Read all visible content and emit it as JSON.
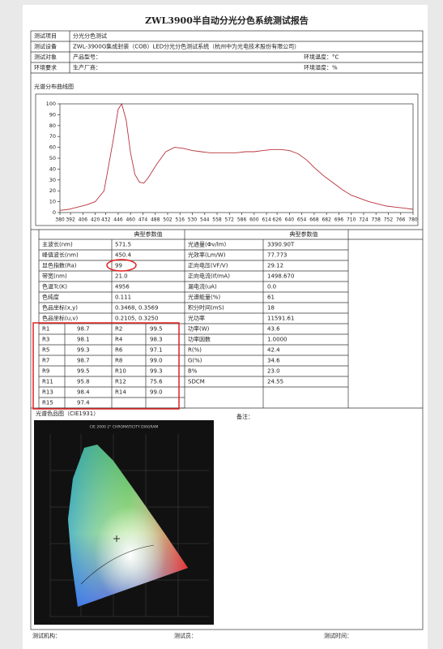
{
  "title": "ZWL3900半自动分光分色系统测试报告",
  "header": {
    "rows": [
      [
        "测试项目",
        "分光分色测试"
      ],
      [
        "测试设备",
        "ZWL-3900G集成封装（COB）LED分光分色测试系统（杭州中为光电技术股份有限公司）"
      ],
      [
        "测试对象",
        "产品型号：",
        "环境温度：°C"
      ],
      [
        "环境要求",
        "生产厂商：",
        "环境湿度：%"
      ]
    ]
  },
  "spectrum": {
    "title": "光谱分布曲线图",
    "color": "#b8323a",
    "xlim": [
      380,
      780
    ],
    "ylim": [
      0,
      100
    ],
    "yticks": [
      0,
      10,
      20,
      30,
      40,
      50,
      60,
      70,
      80,
      90,
      100
    ],
    "xticks": [
      380,
      392,
      406,
      420,
      432,
      446,
      460,
      474,
      488,
      502,
      516,
      530,
      544,
      558,
      572,
      586,
      600,
      614,
      626,
      640,
      654,
      668,
      682,
      696,
      710,
      724,
      738,
      752,
      766,
      780
    ],
    "x": [
      380,
      390,
      400,
      410,
      420,
      430,
      440,
      446,
      450,
      455,
      460,
      465,
      470,
      475,
      480,
      490,
      500,
      510,
      520,
      530,
      540,
      550,
      560,
      570,
      580,
      590,
      600,
      610,
      620,
      630,
      640,
      650,
      660,
      670,
      680,
      690,
      700,
      710,
      720,
      730,
      740,
      750,
      760,
      770,
      780
    ],
    "values": [
      2,
      3,
      5,
      7,
      10,
      20,
      65,
      95,
      100,
      85,
      55,
      35,
      28,
      27,
      32,
      45,
      56,
      60,
      59,
      57,
      56,
      55,
      55,
      55,
      55,
      56,
      56,
      57,
      58,
      58,
      57,
      54,
      48,
      40,
      33,
      27,
      21,
      16,
      13,
      10,
      8,
      6,
      5,
      4,
      3
    ]
  },
  "params": {
    "header_left": "典型参数值",
    "header_right": "典型参数值",
    "left": [
      [
        "主波长(nm)",
        "571.5"
      ],
      [
        "峰值波长(nm)",
        "450.4"
      ],
      [
        "显色指数(Ra)",
        "99"
      ],
      [
        "带宽(nm)",
        "21.0"
      ],
      [
        "色温Tc(K)",
        "4956"
      ],
      [
        "色纯度",
        "0.111"
      ],
      [
        "色品坐标(x,y)",
        "0.3468, 0.3569"
      ],
      [
        "色品坐标(u,v)",
        "0.2105, 0.3250"
      ]
    ],
    "r_values": [
      [
        "R1",
        "98.7",
        "R2",
        "99.5"
      ],
      [
        "R3",
        "98.1",
        "R4",
        "98.3"
      ],
      [
        "R5",
        "99.3",
        "R6",
        "97.1"
      ],
      [
        "R7",
        "98.7",
        "R8",
        "99.0"
      ],
      [
        "R9",
        "99.5",
        "R10",
        "99.3"
      ],
      [
        "R11",
        "95.8",
        "R12",
        "75.6"
      ],
      [
        "R13",
        "98.4",
        "R14",
        "99.0"
      ],
      [
        "R15",
        "97.4"
      ]
    ],
    "right": [
      [
        "光通量(Φv/lm)",
        "3390.90T"
      ],
      [
        "光效率(Lm/W)",
        "77.773"
      ],
      [
        "正向电压(VF/V)",
        "29.12"
      ],
      [
        "正向电流(If/mA)",
        "1498.670"
      ],
      [
        "漏电流(uA)",
        "0.0"
      ],
      [
        "光谱能量(%)",
        "61"
      ],
      [
        "积分时间(mS)",
        "18"
      ],
      [
        "光功率",
        "11591.61"
      ],
      [
        "功率(W)",
        "43.6"
      ],
      [
        "功率因数",
        "1.0000"
      ],
      [
        "R(%)",
        "42.4"
      ],
      [
        "G(%)",
        "34.6"
      ],
      [
        "B%",
        "23.0"
      ],
      [
        "SDCM",
        "24.55"
      ]
    ]
  },
  "cie": {
    "title": "光谱色品图（CIE1931）",
    "caption": "CIE 2000 2° CHROMATICITY DIAGRAM",
    "remark": "备注："
  },
  "footer": [
    "测试机构：",
    "测试员：",
    "测试时间："
  ]
}
